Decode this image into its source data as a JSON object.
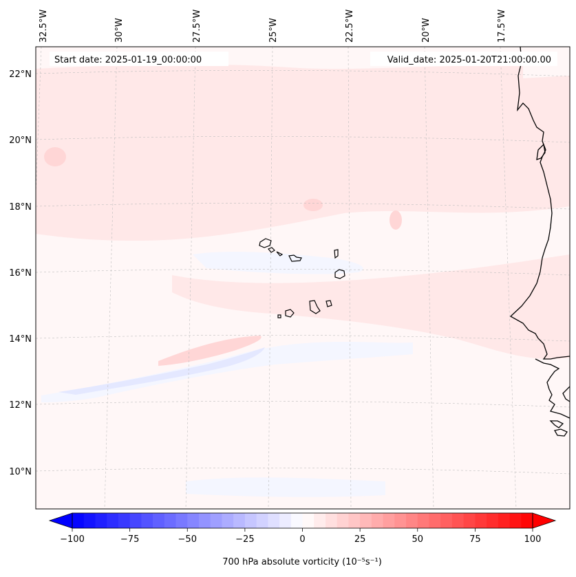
{
  "map": {
    "start_label": "Start date: 2025-01-19_00:00:00",
    "valid_label": "Valid_date: 2025-01-20T21:00:00.00",
    "longitude_labels": [
      "32.5°W",
      "30°W",
      "27.5°W",
      "25°W",
      "22.5°W",
      "20°W",
      "17.5°W"
    ],
    "latitude_labels": [
      "22°N",
      "20°N",
      "18°N",
      "16°N",
      "14°N",
      "12°N",
      "10°N"
    ],
    "field_colors": {
      "background": "#fff7f7",
      "light_positive": "#ffe8e8",
      "medium_positive": "#ffd6d6",
      "light_negative": "#f4f6ff",
      "medium_negative": "#e4e8ff"
    }
  },
  "colorbar": {
    "label": "700 hPa absolute vorticity (10⁻⁵s⁻¹)",
    "min": -100,
    "max": 100,
    "tick_labels": [
      "−100",
      "−75",
      "−50",
      "−25",
      "0",
      "25",
      "50",
      "75",
      "100"
    ],
    "negative_color": "#0000ff",
    "zero_color": "#ffffff",
    "positive_color": "#ff0000"
  }
}
